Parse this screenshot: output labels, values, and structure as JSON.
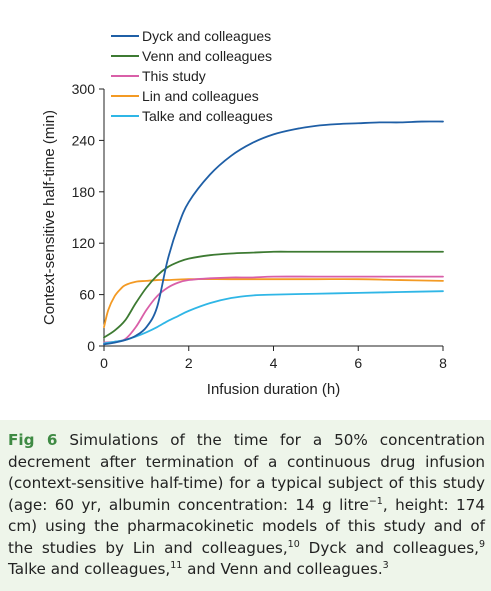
{
  "chart_data": {
    "type": "line",
    "title": "",
    "xlabel": "Infusion duration (h)",
    "ylabel": "Context-sensitive half-time (min)",
    "xlim": [
      0,
      8
    ],
    "ylim": [
      0,
      300
    ],
    "xticks": [
      0,
      2,
      4,
      6,
      8
    ],
    "yticks": [
      0,
      60,
      120,
      180,
      240,
      300
    ],
    "grid": false,
    "legend_position": "top-center",
    "series": [
      {
        "name": "Dyck and colleagues",
        "color": "#1f5fa6",
        "x": [
          0,
          0.25,
          0.5,
          0.75,
          1.0,
          1.25,
          1.5,
          1.75,
          2.0,
          2.5,
          3.0,
          3.5,
          4.0,
          4.5,
          5.0,
          5.5,
          6.0,
          6.5,
          7.0,
          7.5,
          8.0
        ],
        "y": [
          2,
          4,
          7,
          12,
          22,
          45,
          100,
          140,
          168,
          200,
          222,
          237,
          247,
          253,
          257,
          259,
          260,
          261,
          261,
          262,
          262
        ]
      },
      {
        "name": "Venn and colleagues",
        "color": "#3d7a32",
        "x": [
          0,
          0.25,
          0.5,
          0.75,
          1.0,
          1.25,
          1.5,
          1.75,
          2.0,
          2.5,
          3.0,
          3.5,
          4.0,
          4.5,
          5.0,
          6.0,
          7.0,
          8.0
        ],
        "y": [
          10,
          18,
          30,
          50,
          68,
          82,
          92,
          98,
          102,
          106,
          108,
          109,
          110,
          110,
          110,
          110,
          110,
          110
        ]
      },
      {
        "name": "This study",
        "color": "#d95fa8",
        "x": [
          0,
          0.25,
          0.5,
          0.75,
          1.0,
          1.25,
          1.5,
          1.75,
          2.0,
          2.5,
          3.0,
          3.5,
          4.0,
          5.0,
          6.0,
          7.0,
          8.0
        ],
        "y": [
          4,
          5,
          8,
          22,
          42,
          58,
          68,
          74,
          77,
          79,
          80,
          80,
          81,
          81,
          81,
          81,
          81
        ]
      },
      {
        "name": "Lin and colleagues",
        "color": "#f39a24",
        "x": [
          0,
          0.1,
          0.25,
          0.4,
          0.5,
          0.75,
          1.0,
          1.25,
          1.5,
          2.0,
          3.0,
          4.0,
          5.0,
          6.0,
          7.0,
          8.0
        ],
        "y": [
          22,
          42,
          58,
          67,
          71,
          75,
          76,
          77,
          77,
          78,
          78,
          78,
          78,
          78,
          77,
          76
        ]
      },
      {
        "name": "Talke and colleagues",
        "color": "#2fb6e6",
        "x": [
          0,
          0.25,
          0.5,
          0.75,
          1.0,
          1.25,
          1.5,
          1.75,
          2.0,
          2.5,
          3.0,
          3.5,
          4.0,
          5.0,
          6.0,
          7.0,
          8.0
        ],
        "y": [
          3,
          5,
          7,
          11,
          16,
          22,
          29,
          35,
          41,
          50,
          56,
          59,
          60,
          61,
          62,
          63,
          64
        ]
      }
    ]
  },
  "caption": {
    "fig_label": "Fig 6",
    "text_1": "Simulations of the time for a 50% concentration decrement after termination of a continuous drug infusion (context-sensitive half-time) for a typical subject of this study (age: 60 yr, albumin concentration: 14 g litre",
    "sup_1": "−1",
    "text_2": ", height: 174 cm) using the pharmacokinetic models of this study and of the studies by Lin and colleagues,",
    "sup_2": "10",
    "text_3": " Dyck and colleagues,",
    "sup_3": "9",
    "text_4": " Talke and colleagues,",
    "sup_4": "11",
    "text_5": " and Venn and colleagues.",
    "sup_5": "3"
  }
}
